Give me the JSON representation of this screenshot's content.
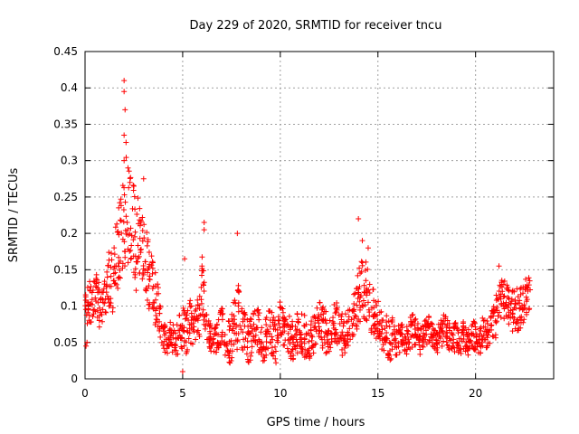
{
  "chart_data": {
    "type": "scatter",
    "title": "Day 229 of 2020, SRMTID for receiver tncu",
    "xlabel": "GPS time / hours",
    "ylabel": "SRMTID / TECUs",
    "xlim": [
      0,
      24
    ],
    "ylim": [
      0,
      0.45
    ],
    "xticks": [
      0,
      5,
      10,
      15,
      20
    ],
    "xtick_labels": [
      "0",
      "5",
      "10",
      "15",
      "20"
    ],
    "yticks": [
      0,
      0.05,
      0.1,
      0.15,
      0.2,
      0.25,
      0.3,
      0.35,
      0.4,
      0.45
    ],
    "ytick_labels": [
      "0",
      "0.05",
      "0.1",
      "0.15",
      "0.2",
      "0.25",
      "0.3",
      "0.35",
      "0.4",
      "0.45"
    ],
    "grid": true,
    "marker": "+",
    "color": "#ff0000",
    "series": [
      {
        "name": "SRMTID",
        "x": [
          0.0,
          0.2,
          0.4,
          0.6,
          0.8,
          1.0,
          1.2,
          1.4,
          1.6,
          1.8,
          2.0,
          2.2,
          2.4,
          2.6,
          2.8,
          3.0,
          3.2,
          3.4,
          3.6,
          3.8,
          4.0,
          4.2,
          4.4,
          4.6,
          4.8,
          5.0,
          5.2,
          5.4,
          5.6,
          5.8,
          6.0,
          6.2,
          6.4,
          6.6,
          6.8,
          7.0,
          7.2,
          7.4,
          7.6,
          7.8,
          8.0,
          8.2,
          8.4,
          8.6,
          8.8,
          9.0,
          9.2,
          9.4,
          9.6,
          9.8,
          10.0,
          10.2,
          10.4,
          10.6,
          10.8,
          11.0,
          11.2,
          11.4,
          11.6,
          11.8,
          12.0,
          12.2,
          12.4,
          12.6,
          12.8,
          13.0,
          13.2,
          13.4,
          13.6,
          13.8,
          14.0,
          14.2,
          14.4,
          14.6,
          14.8,
          15.0,
          15.2,
          15.4,
          15.6,
          15.8,
          16.0,
          16.2,
          16.4,
          16.6,
          16.8,
          17.0,
          17.2,
          17.4,
          17.6,
          17.8,
          18.0,
          18.2,
          18.4,
          18.6,
          18.8,
          19.0,
          19.2,
          19.4,
          19.6,
          19.8,
          20.0,
          20.2,
          20.4,
          20.6,
          20.8,
          21.0,
          21.2,
          21.4,
          21.6,
          21.8,
          22.0,
          22.2,
          22.4,
          22.6,
          22.8
        ],
        "y": [
          0.09,
          0.11,
          0.1,
          0.12,
          0.09,
          0.11,
          0.14,
          0.13,
          0.17,
          0.19,
          0.22,
          0.24,
          0.21,
          0.18,
          0.2,
          0.17,
          0.15,
          0.13,
          0.11,
          0.09,
          0.06,
          0.05,
          0.06,
          0.05,
          0.06,
          0.07,
          0.06,
          0.08,
          0.07,
          0.09,
          0.12,
          0.08,
          0.06,
          0.05,
          0.06,
          0.07,
          0.06,
          0.05,
          0.07,
          0.09,
          0.07,
          0.06,
          0.05,
          0.06,
          0.07,
          0.06,
          0.05,
          0.07,
          0.06,
          0.05,
          0.08,
          0.07,
          0.06,
          0.05,
          0.06,
          0.07,
          0.06,
          0.05,
          0.06,
          0.07,
          0.08,
          0.07,
          0.06,
          0.07,
          0.08,
          0.07,
          0.06,
          0.07,
          0.08,
          0.09,
          0.11,
          0.13,
          0.12,
          0.1,
          0.09,
          0.08,
          0.07,
          0.06,
          0.05,
          0.06,
          0.05,
          0.06,
          0.05,
          0.06,
          0.07,
          0.06,
          0.05,
          0.06,
          0.07,
          0.06,
          0.05,
          0.06,
          0.07,
          0.06,
          0.05,
          0.06,
          0.05,
          0.06,
          0.05,
          0.06,
          0.06,
          0.05,
          0.07,
          0.06,
          0.07,
          0.08,
          0.1,
          0.11,
          0.1,
          0.09,
          0.1,
          0.09,
          0.1,
          0.11,
          0.12
        ],
        "spread": [
          0.03,
          0.03,
          0.03,
          0.03,
          0.03,
          0.03,
          0.04,
          0.04,
          0.05,
          0.06,
          0.07,
          0.08,
          0.07,
          0.06,
          0.06,
          0.05,
          0.05,
          0.04,
          0.04,
          0.03,
          0.02,
          0.02,
          0.02,
          0.02,
          0.03,
          0.03,
          0.03,
          0.03,
          0.03,
          0.04,
          0.05,
          0.03,
          0.02,
          0.02,
          0.02,
          0.03,
          0.03,
          0.03,
          0.04,
          0.05,
          0.03,
          0.03,
          0.03,
          0.03,
          0.03,
          0.03,
          0.03,
          0.03,
          0.03,
          0.03,
          0.03,
          0.03,
          0.03,
          0.03,
          0.03,
          0.03,
          0.03,
          0.03,
          0.03,
          0.03,
          0.03,
          0.03,
          0.03,
          0.03,
          0.03,
          0.03,
          0.03,
          0.03,
          0.03,
          0.03,
          0.04,
          0.05,
          0.04,
          0.04,
          0.03,
          0.03,
          0.03,
          0.03,
          0.03,
          0.03,
          0.02,
          0.02,
          0.02,
          0.02,
          0.03,
          0.02,
          0.02,
          0.02,
          0.02,
          0.02,
          0.02,
          0.02,
          0.02,
          0.02,
          0.02,
          0.02,
          0.02,
          0.02,
          0.02,
          0.02,
          0.02,
          0.02,
          0.02,
          0.02,
          0.02,
          0.03,
          0.03,
          0.03,
          0.03,
          0.03,
          0.03,
          0.03,
          0.03,
          0.03,
          0.03
        ],
        "peaks": [
          [
            2.0,
            0.41
          ],
          [
            2.0,
            0.395
          ],
          [
            2.05,
            0.37
          ],
          [
            2.0,
            0.335
          ],
          [
            2.1,
            0.325
          ],
          [
            2.0,
            0.3
          ],
          [
            2.2,
            0.29
          ],
          [
            2.3,
            0.27
          ],
          [
            2.5,
            0.265
          ],
          [
            3.0,
            0.275
          ],
          [
            6.1,
            0.215
          ],
          [
            6.1,
            0.205
          ],
          [
            7.8,
            0.2
          ],
          [
            14.0,
            0.22
          ],
          [
            14.2,
            0.19
          ],
          [
            14.5,
            0.18
          ],
          [
            5.1,
            0.165
          ],
          [
            0.05,
            0.045
          ],
          [
            0.1,
            0.05
          ],
          [
            5.0,
            0.01
          ],
          [
            21.2,
            0.155
          ]
        ]
      }
    ]
  }
}
